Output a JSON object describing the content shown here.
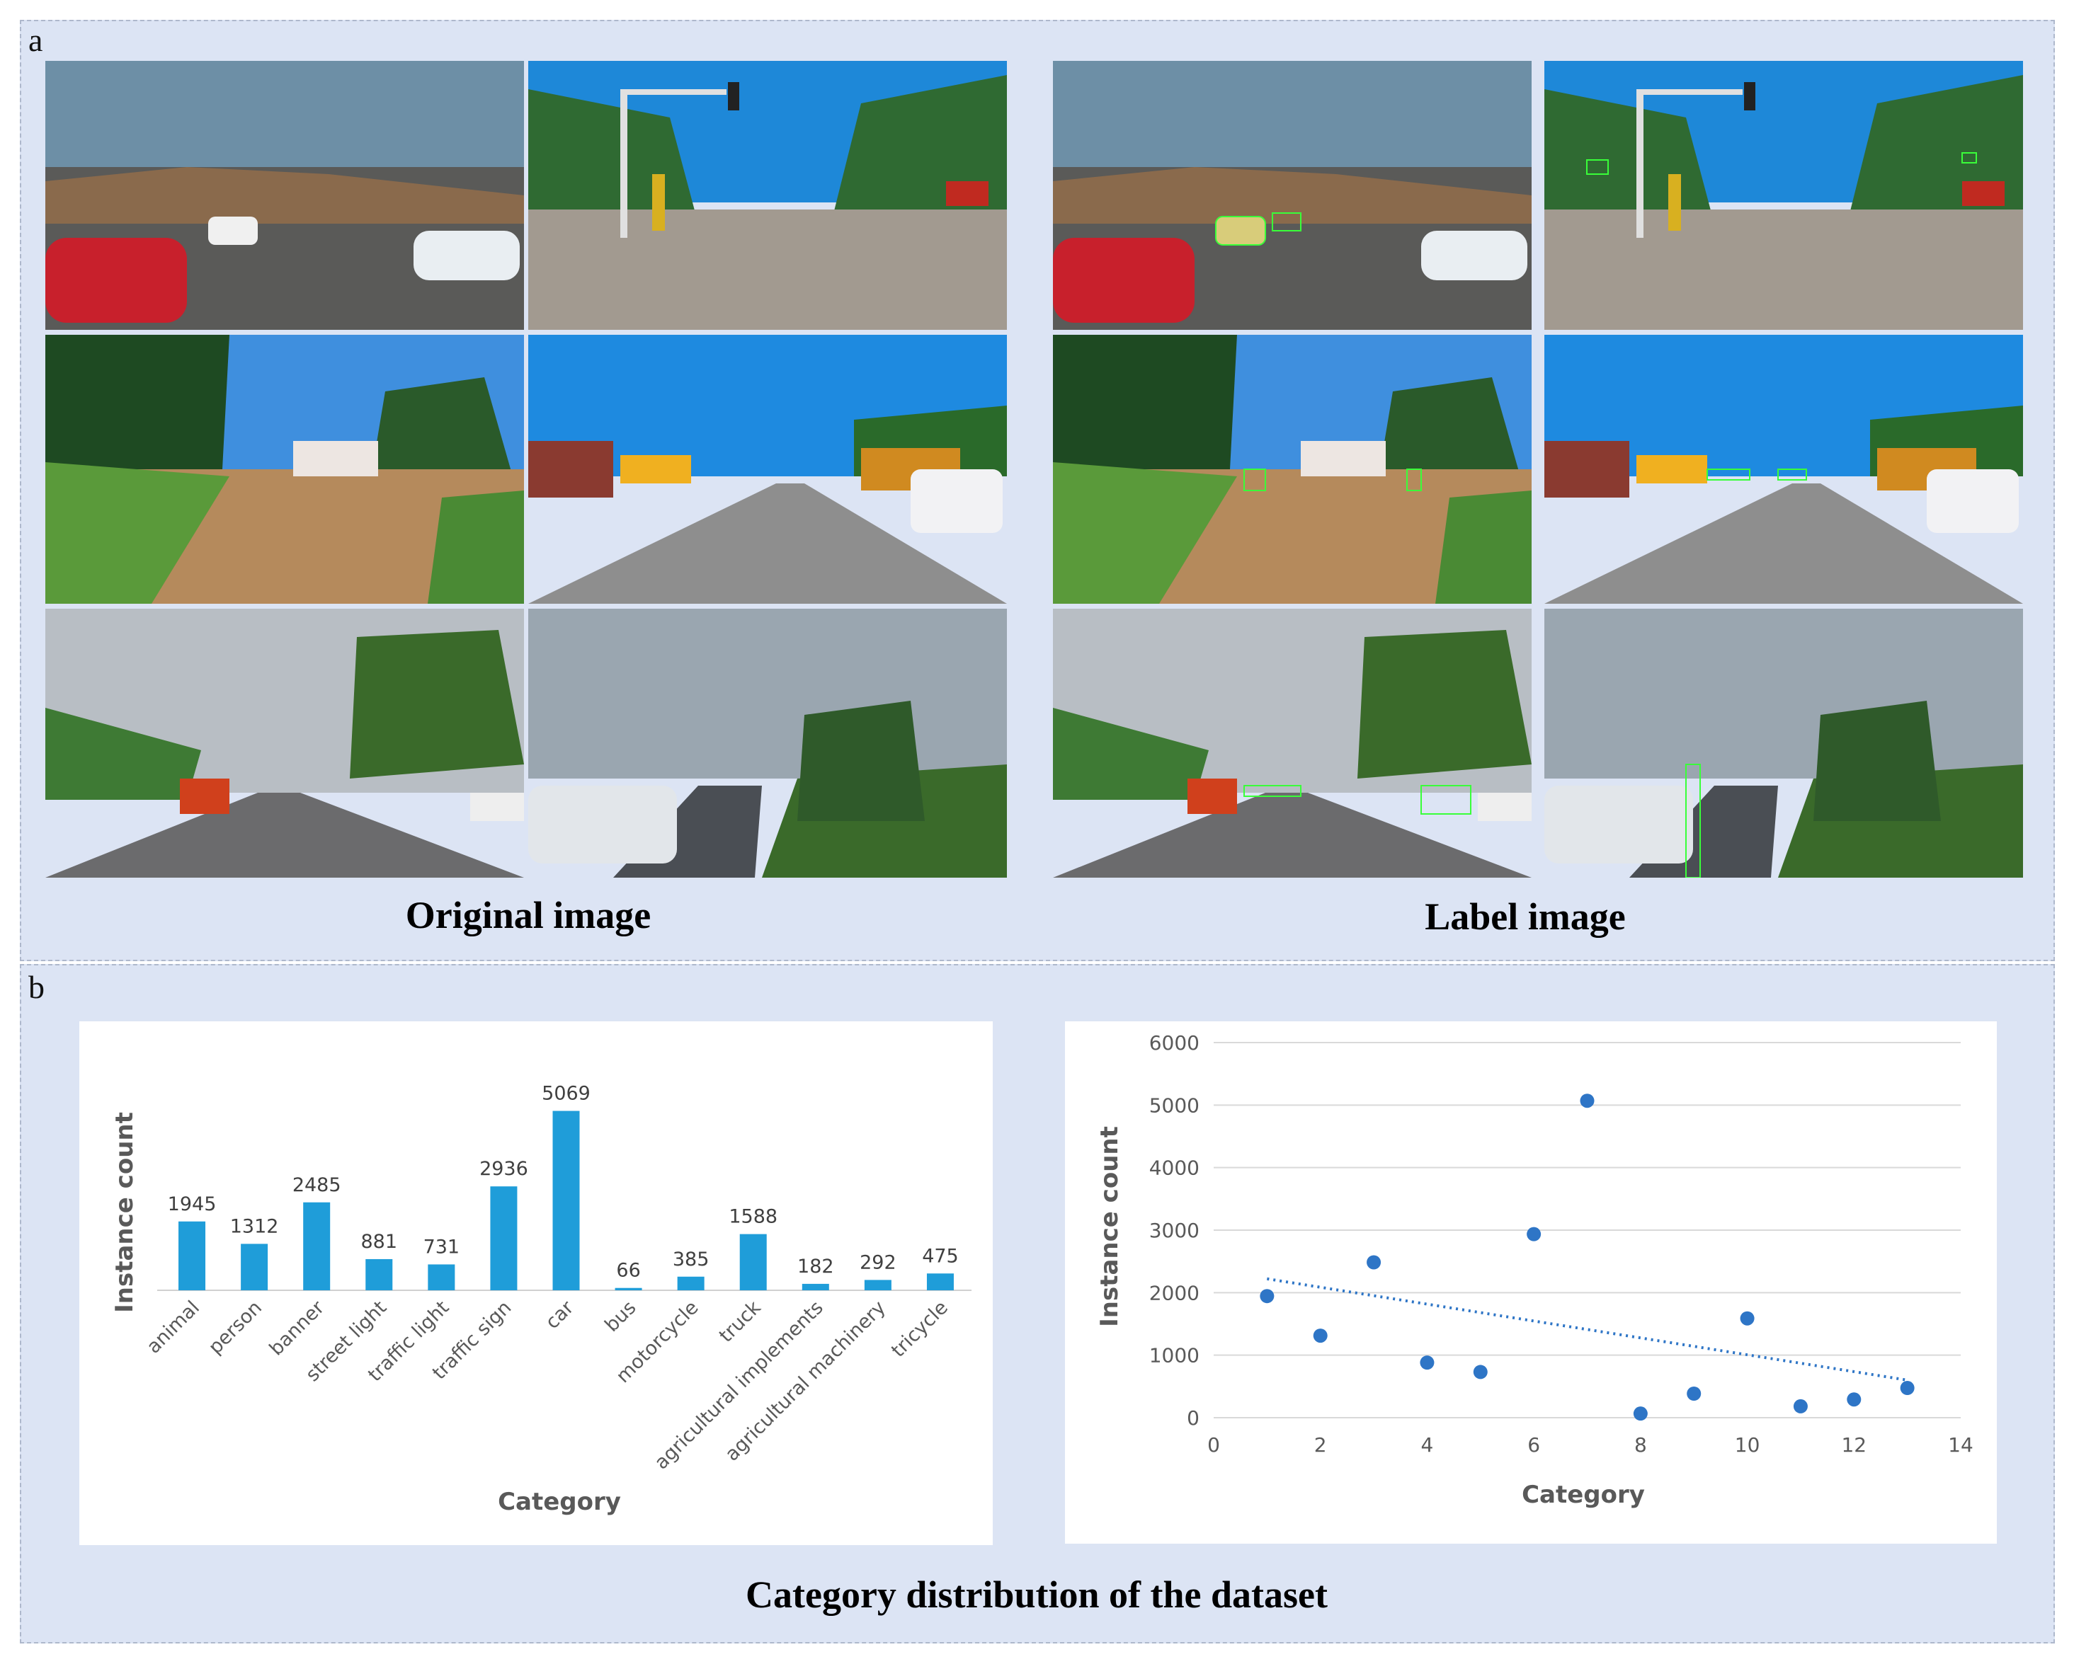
{
  "panel_a": {
    "label": "a",
    "caption_original": "Original image",
    "caption_label": "Label image"
  },
  "panel_b": {
    "label": "b",
    "caption": "Category distribution of the dataset"
  },
  "colors": {
    "bar": "#1f9dd9",
    "point": "#2e75c6",
    "background": "#dce4f4"
  },
  "chart_data": [
    {
      "type": "bar",
      "categories": [
        "animal",
        "person",
        "banner",
        "street light",
        "traffic light",
        "traffic sign",
        "car",
        "bus",
        "motorcycle",
        "truck",
        "agricultural implements",
        "agricultural machinery",
        "tricycle"
      ],
      "values": [
        1945,
        1312,
        2485,
        881,
        731,
        2936,
        5069,
        66,
        385,
        1588,
        182,
        292,
        475
      ],
      "data_labels": [
        "1945",
        "1312",
        "2485",
        "881",
        "731",
        "2936",
        "5069",
        "66",
        "385",
        "1588",
        "182",
        "292",
        "475"
      ],
      "xlabel": "Category",
      "ylabel": "Instance count",
      "ylim": [
        0,
        5800
      ],
      "grid": false,
      "legend": "none"
    },
    {
      "type": "scatter",
      "x": [
        1,
        2,
        3,
        4,
        5,
        6,
        7,
        8,
        9,
        10,
        11,
        12,
        13
      ],
      "y": [
        1945,
        1312,
        2485,
        881,
        731,
        2936,
        5069,
        66,
        385,
        1588,
        182,
        292,
        475
      ],
      "trendline": "linear",
      "xlabel": "Category",
      "ylabel": "Instance count",
      "xlim": [
        0,
        14
      ],
      "ylim": [
        0,
        6000
      ],
      "xticks": [
        "0",
        "2",
        "4",
        "6",
        "8",
        "10",
        "12",
        "14"
      ],
      "yticks": [
        "0",
        "1000",
        "2000",
        "3000",
        "4000",
        "5000",
        "6000"
      ],
      "grid": "horizontal",
      "legend": "none"
    }
  ]
}
